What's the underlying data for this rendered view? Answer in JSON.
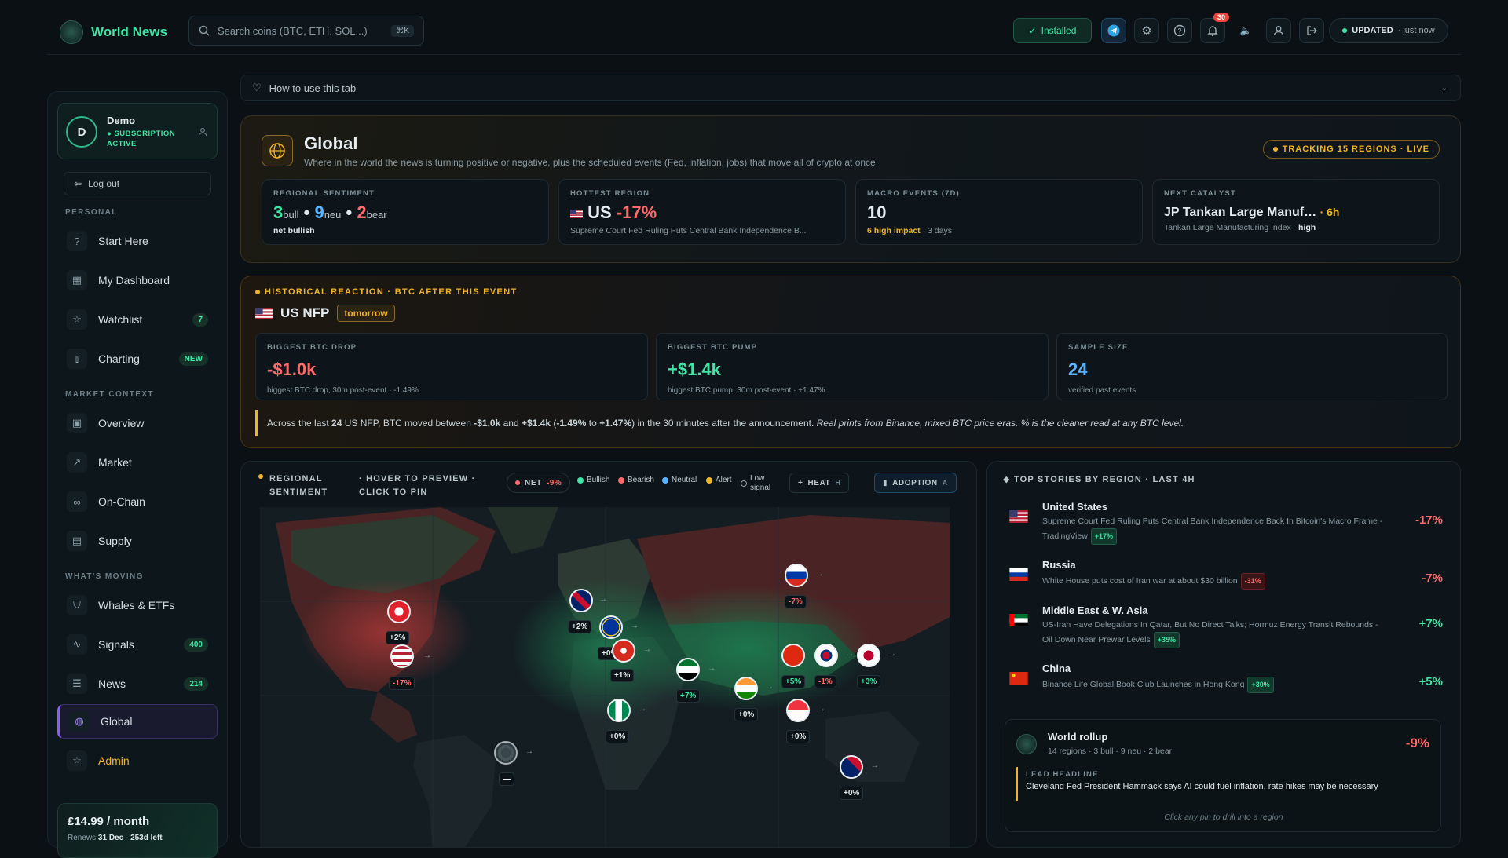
{
  "app": {
    "title": "World News",
    "search_placeholder": "Search coins (BTC, ETH, SOL...)",
    "search_shortcut": "⌘K",
    "installed_label": "Installed",
    "notifications_count": "30",
    "updated_label": "UPDATED",
    "updated_time": "· just now"
  },
  "sidebar": {
    "user_initial": "D",
    "user_name": "Demo",
    "subscription": "SUBSCRIPTION ACTIVE",
    "logout": "Log out",
    "section_personal": "PERSONAL",
    "section_market": "MARKET CONTEXT",
    "section_moving": "WHAT'S MOVING",
    "items": [
      {
        "label": "Start Here",
        "icon": "help-circle-icon"
      },
      {
        "label": "My Dashboard",
        "icon": "dashboard-icon"
      },
      {
        "label": "Watchlist",
        "icon": "star-icon",
        "count": "7"
      },
      {
        "label": "Charting",
        "icon": "candles-icon",
        "count": "NEW"
      },
      {
        "label": "Overview",
        "icon": "grid-icon"
      },
      {
        "label": "Market",
        "icon": "trend-icon"
      },
      {
        "label": "On-Chain",
        "icon": "link-icon"
      },
      {
        "label": "Supply",
        "icon": "layout-icon"
      },
      {
        "label": "Whales & ETFs",
        "icon": "shield-icon"
      },
      {
        "label": "Signals",
        "icon": "pulse-icon",
        "count": "400"
      },
      {
        "label": "News",
        "icon": "newspaper-icon",
        "count": "214"
      },
      {
        "label": "Global",
        "icon": "globe-icon"
      },
      {
        "label": "Admin",
        "icon": "star-icon"
      }
    ],
    "price": "£14.99 / month",
    "renews_prefix": "Renews",
    "renews_date": "31 Dec",
    "renews_left": "253d left"
  },
  "howto": "How to use this tab",
  "global": {
    "title": "Global",
    "subtitle": "Where in the world the news is turning positive or negative, plus the scheduled events (Fed, inflation, jobs) that move all of crypto at once.",
    "tracking": "TRACKING 15 REGIONS · LIVE",
    "regional_sentiment_label": "REGIONAL SENTIMENT",
    "bull_n": "3",
    "bull_t": "bull",
    "neu_n": "9",
    "neu_t": "neu",
    "bear_n": "2",
    "bear_t": "bear",
    "net_label": "net bullish",
    "hottest_label": "HOTTEST REGION",
    "hottest_region": "US",
    "hottest_change": "-17%",
    "hottest_headline": "Supreme Court Fed Ruling Puts Central Bank Independence B...",
    "macro_label": "MACRO EVENTS (7D)",
    "macro_count": "10",
    "macro_high": "6 high impact",
    "macro_days": "· 3 days",
    "next_label": "NEXT CATALYST",
    "next_title": "JP Tankan Large Manuf…",
    "next_time": "· 6h",
    "next_sub": "Tankan Large Manufacturing Index ·",
    "next_impact": "high"
  },
  "historical": {
    "label": "HISTORICAL REACTION · BTC AFTER THIS EVENT",
    "event": "US NFP",
    "when": "tomorrow",
    "drop_label": "BIGGEST BTC DROP",
    "drop_value": "-$1.0k",
    "drop_sub": "biggest BTC drop, 30m post-event · -1.49%",
    "pump_label": "BIGGEST BTC PUMP",
    "pump_value": "+$1.4k",
    "pump_sub": "biggest BTC pump, 30m post-event · +1.47%",
    "sample_label": "SAMPLE SIZE",
    "sample_value": "24",
    "sample_sub": "verified past events",
    "note_a": "Across the last ",
    "note_n": "24",
    "note_b": " US NFP, BTC moved between ",
    "note_lo": "-$1.0k",
    "note_c": " and ",
    "note_hi": "+$1.4k",
    "note_d": " (",
    "note_lop": "-1.49%",
    "note_e": " to ",
    "note_hip": "+1.47%",
    "note_f": ") in the 30 minutes after the announcement. ",
    "note_italic": "Real prints from Binance, mixed BTC price eras. % is the cleaner read at any BTC level."
  },
  "map": {
    "label_1": "REGIONAL",
    "label_2": "SENTIMENT",
    "hint_1": "· HOVER TO PREVIEW ·",
    "hint_2": "CLICK TO PIN",
    "net_label": "NET",
    "net_value": "-9%",
    "legend_bullish": "Bullish",
    "legend_bearish": "Bearish",
    "legend_neutral": "Neutral",
    "legend_alert": "Alert",
    "legend_low_1": "Low",
    "legend_low_2": "signal",
    "heat_btn": "HEAT",
    "heat_key": "H",
    "adoption_btn": "ADOPTION",
    "adoption_key": "A",
    "pins": [
      {
        "code": "CA",
        "label": "+2%"
      },
      {
        "code": "US",
        "label": "-17%"
      },
      {
        "code": "GB",
        "label": "+2%"
      },
      {
        "code": "EU",
        "label": "+0%"
      },
      {
        "code": "CH",
        "label": "+1%"
      },
      {
        "code": "RU",
        "label": "-7%"
      },
      {
        "code": "AE",
        "label": "+7%"
      },
      {
        "code": "NG",
        "label": "+0%"
      },
      {
        "code": "IN",
        "label": "+0%"
      },
      {
        "code": "CN",
        "label": "+5%"
      },
      {
        "code": "KR",
        "label": "-1%"
      },
      {
        "code": "JP",
        "label": "+3%"
      },
      {
        "code": "SG",
        "label": "+0%"
      },
      {
        "code": "BR",
        "label": "—"
      },
      {
        "code": "AU",
        "label": "+0%"
      }
    ]
  },
  "stories": {
    "label": "TOP STORIES BY REGION · LAST 4H",
    "items": [
      {
        "region": "United States",
        "headline": "Supreme Court Fed Ruling Puts Central Bank Independence Back In Bitcoin's Macro Frame - TradingView",
        "tag": "+17%",
        "change": "-17%"
      },
      {
        "region": "Russia",
        "headline": "White House puts cost of Iran war at about $30 billion",
        "tag": "-31%",
        "change": "-7%"
      },
      {
        "region": "Middle East & W. Asia",
        "headline": "US-Iran Have Delegations In Qatar, But No Direct Talks; Hormuz Energy Transit Rebounds - Oil Down Near Prewar Levels",
        "tag": "+35%",
        "change": "+7%"
      },
      {
        "region": "China",
        "headline": "Binance Life Global Book Club Launches in Hong Kong",
        "tag": "+30%",
        "change": "+5%"
      }
    ],
    "rollup_title": "World rollup",
    "rollup_sub": "14 regions · 3 bull · 9 neu · 2 bear",
    "rollup_change": "-9%",
    "lead_label": "LEAD HEADLINE",
    "lead_text": "Cleveland Fed President Hammack says AI could fuel inflation, rate hikes may be necessary",
    "hint": "Click any pin to drill into a region"
  }
}
